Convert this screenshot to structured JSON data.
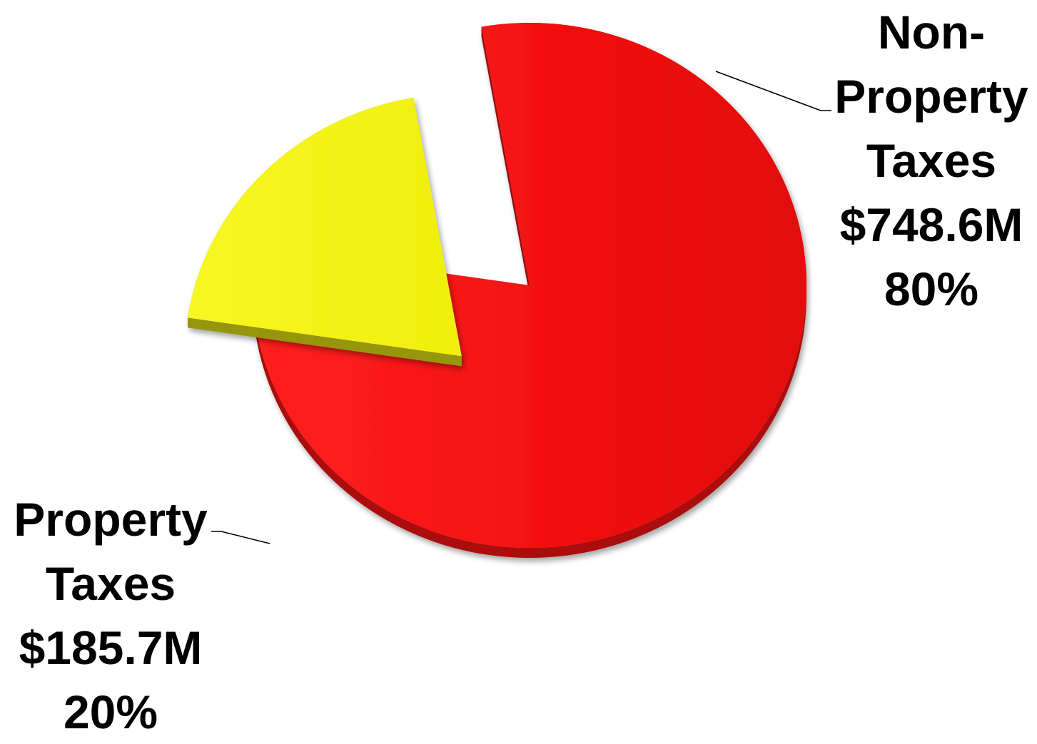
{
  "chart_data": {
    "type": "pie",
    "title": "",
    "slices": [
      {
        "label_lines": [
          "Non-",
          "Property",
          "Taxes"
        ],
        "amount_label": "$748.6M",
        "percent_label": "80%",
        "value": 748.6,
        "percent": 80,
        "color": "#ee1111",
        "exploded": false
      },
      {
        "label_lines": [
          "Property",
          "Taxes"
        ],
        "amount_label": "$185.7M",
        "percent_label": "20%",
        "value": 185.7,
        "percent": 20,
        "color": "#f2f214",
        "exploded": true
      }
    ],
    "style": "3d-exploded",
    "legend": "none"
  }
}
